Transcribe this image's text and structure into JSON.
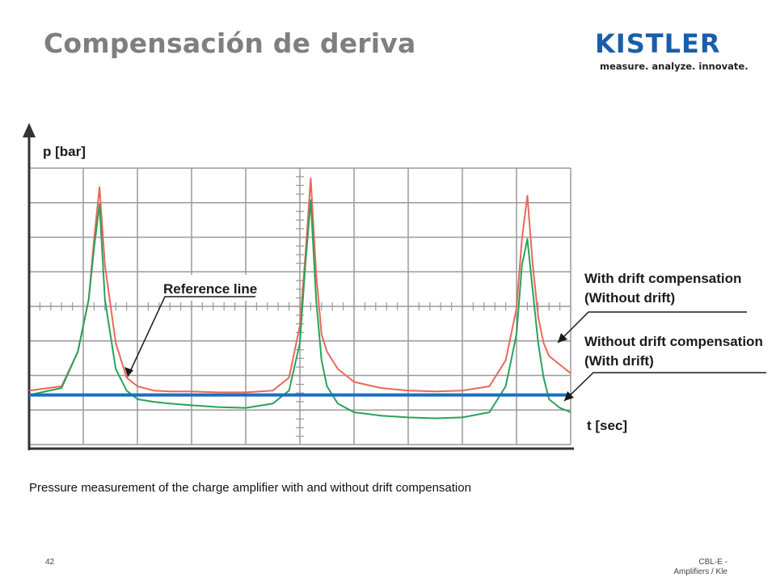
{
  "slide": {
    "title": "Compensación de deriva",
    "caption": "Pressure measurement of the charge amplifier with and without drift compensation",
    "page_number": "42",
    "footer_ref": "CBL-E - Amplifiers / Kle",
    "accent_color": "#7f7f7f"
  },
  "logo": {
    "wordmark": "KISTLER",
    "tagline": "measure. analyze. innovate.",
    "color": "#1a5ea9"
  },
  "chart_data": {
    "type": "line",
    "xlabel": "t [sec]",
    "ylabel": "p [bar]",
    "grid": true,
    "xlim": [
      0,
      10
    ],
    "ylim": [
      -0.2,
      2.6
    ],
    "reference_line": {
      "label": "Reference line",
      "y": 0,
      "color": "#1a6fc4"
    },
    "annotations": [
      {
        "label_line1": "With drift compensation",
        "label_line2": "(Without drift)",
        "target": "red"
      },
      {
        "label_line1": "Without drift compensation",
        "label_line2": "(With drift)",
        "target": "green"
      }
    ],
    "series": [
      {
        "key": "red",
        "color": "#e8685a",
        "x": [
          0,
          0.6,
          0.9,
          1.1,
          1.2,
          1.3,
          1.4,
          1.6,
          1.8,
          2.0,
          2.3,
          2.6,
          3.0,
          3.5,
          4.0,
          4.5,
          4.8,
          5.0,
          5.1,
          5.2,
          5.3,
          5.4,
          5.5,
          5.7,
          6.0,
          6.5,
          7.0,
          7.5,
          8.0,
          8.5,
          8.8,
          9.0,
          9.1,
          9.2,
          9.3,
          9.4,
          9.5,
          9.6,
          9.8,
          10.0
        ],
        "y": [
          0.05,
          0.1,
          0.5,
          1.1,
          1.8,
          2.4,
          1.5,
          0.6,
          0.2,
          0.1,
          0.05,
          0.04,
          0.04,
          0.03,
          0.03,
          0.05,
          0.2,
          0.8,
          1.6,
          2.5,
          1.4,
          0.7,
          0.5,
          0.3,
          0.15,
          0.08,
          0.05,
          0.04,
          0.05,
          0.1,
          0.4,
          1.0,
          1.8,
          2.3,
          1.5,
          0.9,
          0.6,
          0.45,
          0.35,
          0.25
        ]
      },
      {
        "key": "green",
        "color": "#2aa25a",
        "x": [
          0,
          0.6,
          0.9,
          1.1,
          1.2,
          1.3,
          1.4,
          1.6,
          1.8,
          2.0,
          2.3,
          2.6,
          3.0,
          3.5,
          4.0,
          4.5,
          4.8,
          5.0,
          5.1,
          5.2,
          5.3,
          5.4,
          5.5,
          5.7,
          6.0,
          6.5,
          7.0,
          7.5,
          8.0,
          8.5,
          8.8,
          9.0,
          9.1,
          9.2,
          9.3,
          9.4,
          9.5,
          9.6,
          9.8,
          10.0
        ],
        "y": [
          0.0,
          0.08,
          0.5,
          1.1,
          1.7,
          2.2,
          1.1,
          0.3,
          0.05,
          -0.05,
          -0.08,
          -0.1,
          -0.12,
          -0.14,
          -0.15,
          -0.1,
          0.05,
          0.6,
          1.5,
          2.25,
          1.1,
          0.4,
          0.1,
          -0.1,
          -0.2,
          -0.24,
          -0.26,
          -0.27,
          -0.26,
          -0.2,
          0.1,
          0.7,
          1.5,
          1.8,
          1.2,
          0.6,
          0.2,
          -0.05,
          -0.15,
          -0.2
        ]
      }
    ]
  }
}
